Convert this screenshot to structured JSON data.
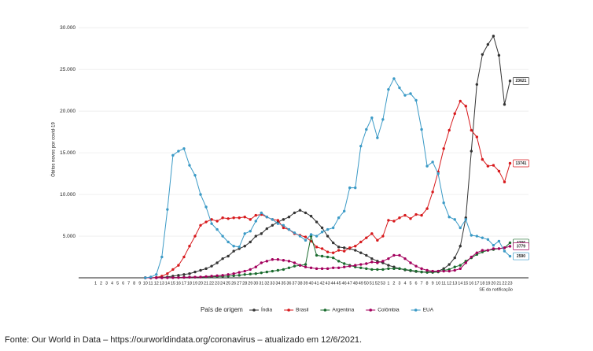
{
  "chart_data": {
    "type": "line",
    "y_label": "Óbitos novos por covid-19",
    "x_label": "SE da notificação",
    "legend_title": "País de origem",
    "caption": "Fonte: Our World in Data – https://ourworldindata.org/coronavirus – atualizado em 12/6/2021.",
    "categories": [
      "1",
      "2",
      "3",
      "4",
      "5",
      "6",
      "7",
      "8",
      "9",
      "10",
      "11",
      "12",
      "13",
      "14",
      "15",
      "16",
      "17",
      "18",
      "19",
      "20",
      "21",
      "22",
      "23",
      "24",
      "25",
      "26",
      "27",
      "28",
      "29",
      "30",
      "31",
      "32",
      "33",
      "34",
      "35",
      "36",
      "37",
      "38",
      "39",
      "40",
      "41",
      "42",
      "43",
      "44",
      "45",
      "46",
      "47",
      "48",
      "49",
      "50",
      "51",
      "52",
      "53",
      "1",
      "2",
      "3",
      "4",
      "5",
      "6",
      "7",
      "8",
      "9",
      "10",
      "11",
      "12",
      "13",
      "14",
      "15",
      "16",
      "17",
      "18",
      "19",
      "20",
      "21",
      "22",
      "23"
    ],
    "ylim": [
      0,
      30500
    ],
    "yticks": [
      {
        "value": 5000,
        "label": "5.000"
      },
      {
        "value": 10000,
        "label": "10.000"
      },
      {
        "value": 15000,
        "label": "15.000"
      },
      {
        "value": 20000,
        "label": "20.000"
      },
      {
        "value": 25000,
        "label": "25.000"
      },
      {
        "value": 30000,
        "label": "30.000"
      }
    ],
    "grid": true,
    "legend": "bottom",
    "series": [
      {
        "name": "Índia",
        "color": "#333333",
        "values": [
          null,
          null,
          null,
          null,
          null,
          null,
          null,
          null,
          null,
          0,
          0,
          20,
          50,
          100,
          200,
          300,
          400,
          500,
          700,
          900,
          1100,
          1400,
          1800,
          2300,
          2600,
          3200,
          3500,
          3800,
          4300,
          5000,
          5300,
          5900,
          6300,
          6700,
          7000,
          7300,
          7800,
          8100,
          7800,
          7400,
          6700,
          6000,
          5000,
          4200,
          3700,
          3600,
          3500,
          3300,
          3000,
          2700,
          2300,
          2000,
          1800,
          1500,
          1300,
          1100,
          950,
          850,
          750,
          700,
          700,
          750,
          800,
          1100,
          1600,
          2400,
          3800,
          7200,
          15200,
          23200,
          26800,
          28000,
          29000,
          26700,
          20800,
          23621
        ]
      },
      {
        "name": "Brasil",
        "color": "#d7191c",
        "values": [
          null,
          null,
          null,
          null,
          null,
          null,
          null,
          null,
          null,
          0,
          0,
          50,
          200,
          500,
          1000,
          1500,
          2500,
          3800,
          5000,
          6300,
          6700,
          7000,
          6800,
          7200,
          7100,
          7200,
          7200,
          7300,
          7000,
          7500,
          7600,
          7300,
          7000,
          6900,
          6000,
          5800,
          5300,
          5100,
          4900,
          4400,
          3700,
          3500,
          3100,
          3000,
          3300,
          3200,
          3600,
          3800,
          4300,
          4800,
          5300,
          4500,
          5000,
          6900,
          6800,
          7200,
          7500,
          7100,
          7600,
          7500,
          8300,
          10300,
          12700,
          15500,
          17700,
          19700,
          21200,
          20600,
          17700,
          16900,
          14200,
          13400,
          13500,
          12800,
          11500,
          13741
        ]
      },
      {
        "name": "Argentina",
        "color": "#1a6b2e",
        "values": [
          null,
          null,
          null,
          null,
          null,
          null,
          null,
          null,
          null,
          0,
          0,
          10,
          20,
          30,
          40,
          50,
          60,
          70,
          80,
          90,
          100,
          120,
          150,
          180,
          200,
          250,
          300,
          400,
          450,
          500,
          600,
          700,
          800,
          900,
          1000,
          1200,
          1400,
          1500,
          1600,
          5000,
          2700,
          2600,
          2500,
          2400,
          2000,
          1700,
          1500,
          1300,
          1200,
          1100,
          1000,
          1000,
          1000,
          1100,
          1100,
          1100,
          1000,
          900,
          800,
          700,
          650,
          650,
          700,
          900,
          1000,
          1300,
          1500,
          2000,
          2400,
          2800,
          3100,
          3300,
          3400,
          3500,
          3600,
          4206
        ]
      },
      {
        "name": "Colômbia",
        "color": "#a3005d",
        "values": [
          null,
          null,
          null,
          null,
          null,
          null,
          null,
          null,
          null,
          0,
          0,
          0,
          0,
          10,
          20,
          30,
          50,
          70,
          90,
          100,
          150,
          200,
          250,
          300,
          400,
          500,
          650,
          800,
          1000,
          1300,
          1800,
          2000,
          2200,
          2200,
          2100,
          2000,
          1800,
          1500,
          1300,
          1200,
          1100,
          1100,
          1100,
          1200,
          1200,
          1300,
          1400,
          1500,
          1600,
          1700,
          1900,
          1800,
          2000,
          2300,
          2700,
          2700,
          2300,
          1800,
          1400,
          1100,
          900,
          800,
          800,
          800,
          800,
          900,
          1100,
          1800,
          2500,
          3000,
          3300,
          3300,
          3500,
          3500,
          3600,
          3779
        ]
      },
      {
        "name": "EUA",
        "color": "#3b9ac6",
        "values": [
          null,
          null,
          null,
          null,
          null,
          null,
          null,
          null,
          null,
          0,
          100,
          400,
          2500,
          8200,
          14700,
          15200,
          15500,
          13500,
          12300,
          10000,
          8500,
          6500,
          5800,
          5000,
          4300,
          3800,
          3700,
          5300,
          5600,
          6800,
          7800,
          7300,
          7000,
          6500,
          6300,
          5800,
          5400,
          5000,
          4500,
          5200,
          5000,
          5500,
          5800,
          6000,
          7200,
          8000,
          10800,
          10800,
          15800,
          17800,
          19200,
          16800,
          19000,
          22600,
          23900,
          22800,
          21900,
          22100,
          21300,
          17800,
          13400,
          13900,
          12500,
          9000,
          7300,
          7000,
          6000,
          7000,
          5100,
          5000,
          4800,
          4600,
          3900,
          4400,
          3200,
          2590
        ]
      }
    ]
  }
}
